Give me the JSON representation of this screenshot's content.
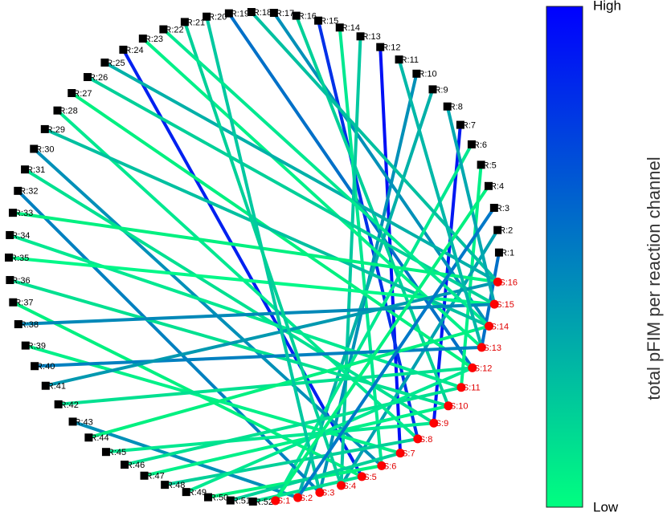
{
  "network": {
    "reaction_nodes": [
      "R:1",
      "R:2",
      "R:3",
      "R:4",
      "R:5",
      "R:6",
      "R:7",
      "R:8",
      "R:9",
      "R:10",
      "R:11",
      "R:12",
      "R:13",
      "R:14",
      "R:15",
      "R:16",
      "R:17",
      "R:18",
      "R:19",
      "R:20",
      "R:21",
      "R:22",
      "R:23",
      "R:24",
      "R:25",
      "R:26",
      "R:27",
      "R:28",
      "R:29",
      "R:30",
      "R:31",
      "R:32",
      "R:33",
      "R:34",
      "R:35",
      "R:36",
      "R:37",
      "R:38",
      "R:39",
      "R:40",
      "R:41",
      "R:42",
      "R:43",
      "R:44",
      "R:45",
      "R:46",
      "R:47",
      "R:48",
      "R:49",
      "R:50",
      "R:51",
      "R:52"
    ],
    "species_nodes": [
      "S:1",
      "S:2",
      "S:3",
      "S:4",
      "S:5",
      "S:6",
      "S:7",
      "S:8",
      "S:9",
      "S:10",
      "S:11",
      "S:12",
      "S:13",
      "S:14",
      "S:15",
      "S:16"
    ],
    "edges": [
      {
        "from": "R:12",
        "to": "S:7",
        "color": "#0010f5"
      },
      {
        "from": "R:15",
        "to": "S:8",
        "color": "#0030e8"
      },
      {
        "from": "R:24",
        "to": "S:5",
        "color": "#0020f0"
      },
      {
        "from": "R:7",
        "to": "S:9",
        "color": "#0018f2"
      },
      {
        "from": "R:19",
        "to": "S:12",
        "color": "#0070c8"
      },
      {
        "from": "R:17",
        "to": "S:14",
        "color": "#0090b8"
      },
      {
        "from": "R:16",
        "to": "S:10",
        "color": "#00d098"
      },
      {
        "from": "R:14",
        "to": "S:6",
        "color": "#00e890"
      },
      {
        "from": "R:13",
        "to": "S:4",
        "color": "#00c8a0"
      },
      {
        "from": "R:10",
        "to": "S:3",
        "color": "#0090b8"
      },
      {
        "from": "R:9",
        "to": "S:2",
        "color": "#00b0a8"
      },
      {
        "from": "R:6",
        "to": "S:1",
        "color": "#00e890"
      },
      {
        "from": "R:5",
        "to": "S:11",
        "color": "#00f088"
      },
      {
        "from": "R:1",
        "to": "S:13",
        "color": "#0070c8"
      },
      {
        "from": "R:2",
        "to": "S:4",
        "color": "#00a0b0"
      },
      {
        "from": "R:23",
        "to": "S:13",
        "color": "#00f088"
      },
      {
        "from": "R:25",
        "to": "S:16",
        "color": "#00b0a8"
      },
      {
        "from": "R:26",
        "to": "S:15",
        "color": "#00d098"
      },
      {
        "from": "R:27",
        "to": "S:12",
        "color": "#00f080"
      },
      {
        "from": "R:28",
        "to": "S:8",
        "color": "#00e890"
      },
      {
        "from": "R:29",
        "to": "S:14",
        "color": "#00c0a0"
      },
      {
        "from": "R:30",
        "to": "S:6",
        "color": "#0090b8"
      },
      {
        "from": "R:31",
        "to": "S:9",
        "color": "#00e090"
      },
      {
        "from": "R:32",
        "to": "S:3",
        "color": "#0080c0"
      },
      {
        "from": "R:33",
        "to": "S:16",
        "color": "#00f080"
      },
      {
        "from": "R:34",
        "to": "S:11",
        "color": "#00e890"
      },
      {
        "from": "R:35",
        "to": "S:15",
        "color": "#00f888"
      },
      {
        "from": "R:36",
        "to": "S:10",
        "color": "#00e090"
      },
      {
        "from": "R:37",
        "to": "S:5",
        "color": "#00f080"
      },
      {
        "from": "R:38",
        "to": "S:15",
        "color": "#0088b8"
      },
      {
        "from": "R:39",
        "to": "S:7",
        "color": "#00f088"
      },
      {
        "from": "R:40",
        "to": "S:13",
        "color": "#0080c0"
      },
      {
        "from": "R:41",
        "to": "S:16",
        "color": "#0098b0"
      },
      {
        "from": "R:42",
        "to": "S:12",
        "color": "#00e090"
      },
      {
        "from": "R:43",
        "to": "S:2",
        "color": "#0090b8"
      },
      {
        "from": "R:44",
        "to": "S:14",
        "color": "#00f080"
      },
      {
        "from": "R:45",
        "to": "S:9",
        "color": "#00e890"
      },
      {
        "from": "R:46",
        "to": "S:11",
        "color": "#00e090"
      },
      {
        "from": "R:47",
        "to": "S:10",
        "color": "#00f088"
      },
      {
        "from": "R:48",
        "to": "S:8",
        "color": "#00d098"
      },
      {
        "from": "R:49",
        "to": "S:12",
        "color": "#00e890"
      },
      {
        "from": "R:50",
        "to": "S:6",
        "color": "#00f080"
      },
      {
        "from": "R:51",
        "to": "S:7",
        "color": "#00d098"
      },
      {
        "from": "R:52",
        "to": "S:5",
        "color": "#00e090"
      },
      {
        "from": "R:20",
        "to": "S:3",
        "color": "#00c8a0"
      },
      {
        "from": "R:21",
        "to": "S:4",
        "color": "#00d098"
      },
      {
        "from": "R:22",
        "to": "S:14",
        "color": "#00e890"
      },
      {
        "from": "R:18",
        "to": "S:16",
        "color": "#00c0a0"
      },
      {
        "from": "R:8",
        "to": "S:15",
        "color": "#00a8b0"
      },
      {
        "from": "R:4",
        "to": "S:1",
        "color": "#00f080"
      },
      {
        "from": "R:3",
        "to": "S:2",
        "color": "#0078c8"
      },
      {
        "from": "R:11",
        "to": "S:13",
        "color": "#00b8a8"
      }
    ]
  },
  "colorbar": {
    "label": "total pFIM per reaction channel",
    "high": "High",
    "low": "Low",
    "top_color": "#0000ff",
    "bottom_color": "#00ff80"
  }
}
